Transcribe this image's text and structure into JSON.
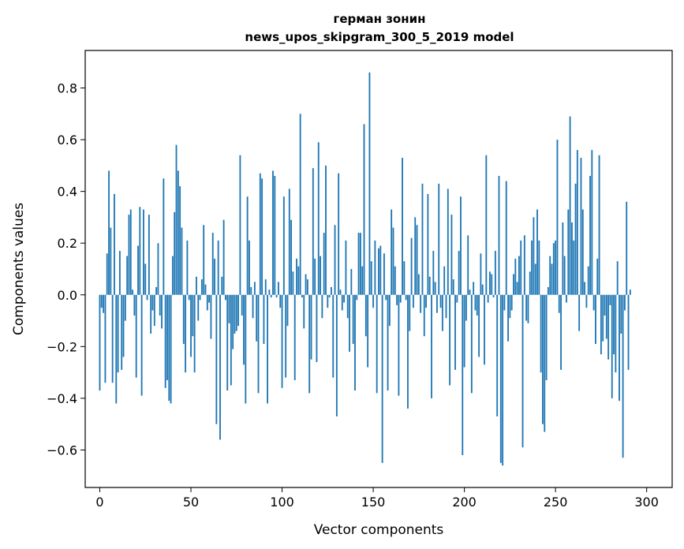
{
  "chart_data": {
    "type": "bar",
    "title_line1": "герман зонин",
    "title_line2": "news_upos_skipgram_300_5_2019 model",
    "xlabel": "Vector components",
    "ylabel": "Components values",
    "xlim": [
      -8,
      314
    ],
    "ylim": [
      -0.745,
      0.945
    ],
    "x_ticks": [
      0,
      50,
      100,
      150,
      200,
      250,
      300
    ],
    "x_tick_labels": [
      "0",
      "50",
      "100",
      "150",
      "200",
      "250",
      "300"
    ],
    "y_ticks": [
      -0.6,
      -0.4,
      -0.2,
      0.0,
      0.2,
      0.4,
      0.6,
      0.8
    ],
    "y_tick_labels": [
      "−0.6",
      "−0.4",
      "−0.2",
      "0.0",
      "0.2",
      "0.4",
      "0.6",
      "0.8"
    ],
    "bar_color": "#1f77b4",
    "grid": false,
    "values": [
      -0.37,
      -0.05,
      -0.07,
      -0.34,
      0.16,
      0.48,
      0.26,
      -0.34,
      0.39,
      -0.42,
      -0.3,
      0.17,
      -0.29,
      -0.24,
      -0.1,
      0.15,
      0.31,
      0.33,
      0.02,
      -0.08,
      -0.32,
      0.19,
      0.34,
      -0.39,
      0.33,
      0.12,
      -0.02,
      0.31,
      -0.15,
      -0.06,
      -0.12,
      0.03,
      0.2,
      -0.08,
      -0.13,
      0.45,
      -0.36,
      -0.33,
      -0.41,
      -0.42,
      0.15,
      0.32,
      0.58,
      0.48,
      0.42,
      0.26,
      -0.19,
      -0.3,
      0.21,
      -0.02,
      -0.24,
      -0.16,
      -0.3,
      0.07,
      -0.1,
      -0.02,
      0.06,
      0.27,
      0.04,
      -0.06,
      -0.03,
      -0.17,
      0.24,
      0.14,
      -0.5,
      0.21,
      -0.56,
      0.07,
      0.29,
      -0.02,
      -0.37,
      -0.11,
      -0.35,
      -0.21,
      -0.15,
      -0.14,
      -0.12,
      0.54,
      -0.08,
      -0.27,
      -0.42,
      0.38,
      0.21,
      0.03,
      -0.09,
      0.05,
      -0.18,
      -0.38,
      0.47,
      0.45,
      -0.19,
      0.06,
      -0.42,
      0.02,
      -0.01,
      0.48,
      0.46,
      -0.01,
      0.05,
      -0.05,
      -0.36,
      0.38,
      -0.32,
      -0.12,
      0.41,
      0.29,
      0.09,
      -0.33,
      0.14,
      0.11,
      0.7,
      -0.01,
      -0.13,
      0.08,
      0.06,
      -0.38,
      -0.25,
      0.49,
      0.14,
      -0.26,
      0.59,
      0.15,
      -0.09,
      0.24,
      0.5,
      -0.05,
      -0.01,
      0.03,
      -0.32,
      0.27,
      -0.47,
      0.47,
      0.02,
      -0.06,
      -0.03,
      0.21,
      -0.09,
      -0.22,
      0.1,
      -0.19,
      -0.37,
      -0.02,
      0.24,
      0.24,
      0.11,
      0.66,
      -0.16,
      -0.28,
      0.86,
      0.13,
      -0.05,
      0.21,
      -0.38,
      0.18,
      0.19,
      -0.65,
      0.16,
      -0.02,
      -0.37,
      -0.12,
      0.33,
      0.26,
      0.11,
      -0.04,
      -0.39,
      -0.03,
      0.53,
      0.13,
      -0.02,
      -0.44,
      -0.14,
      0.22,
      -0.05,
      0.3,
      0.27,
      0.08,
      -0.07,
      0.43,
      -0.16,
      -0.05,
      0.39,
      0.07,
      -0.4,
      0.17,
      0.05,
      -0.07,
      0.43,
      -0.05,
      -0.14,
      0.11,
      -0.09,
      0.41,
      -0.35,
      0.31,
      0.06,
      -0.29,
      -0.03,
      0.17,
      0.38,
      -0.62,
      -0.28,
      -0.1,
      0.23,
      0.02,
      -0.38,
      0.05,
      -0.06,
      -0.08,
      -0.24,
      0.16,
      0.04,
      -0.27,
      0.54,
      -0.03,
      0.09,
      0.08,
      -0.01,
      0.17,
      -0.47,
      0.46,
      -0.65,
      -0.66,
      -0.06,
      0.44,
      -0.18,
      -0.09,
      -0.06,
      0.08,
      0.14,
      0.05,
      0.15,
      0.21,
      -0.59,
      0.23,
      -0.1,
      -0.11,
      0.09,
      0.21,
      0.3,
      0.12,
      0.33,
      0.21,
      -0.3,
      -0.5,
      -0.53,
      -0.33,
      0.03,
      0.15,
      0.12,
      0.2,
      0.21,
      0.6,
      -0.07,
      -0.29,
      0.28,
      0.15,
      -0.03,
      0.33,
      0.69,
      0.28,
      0.21,
      0.43,
      0.56,
      -0.14,
      0.53,
      0.33,
      0.05,
      -0.05,
      0.11,
      0.46,
      0.56,
      -0.06,
      -0.19,
      0.14,
      0.54,
      -0.23,
      -0.18,
      -0.08,
      -0.17,
      -0.25,
      -0.04,
      -0.4,
      -0.23,
      -0.3,
      0.13,
      -0.41,
      -0.15,
      -0.63,
      -0.06,
      0.36,
      -0.29,
      0.02
    ]
  }
}
